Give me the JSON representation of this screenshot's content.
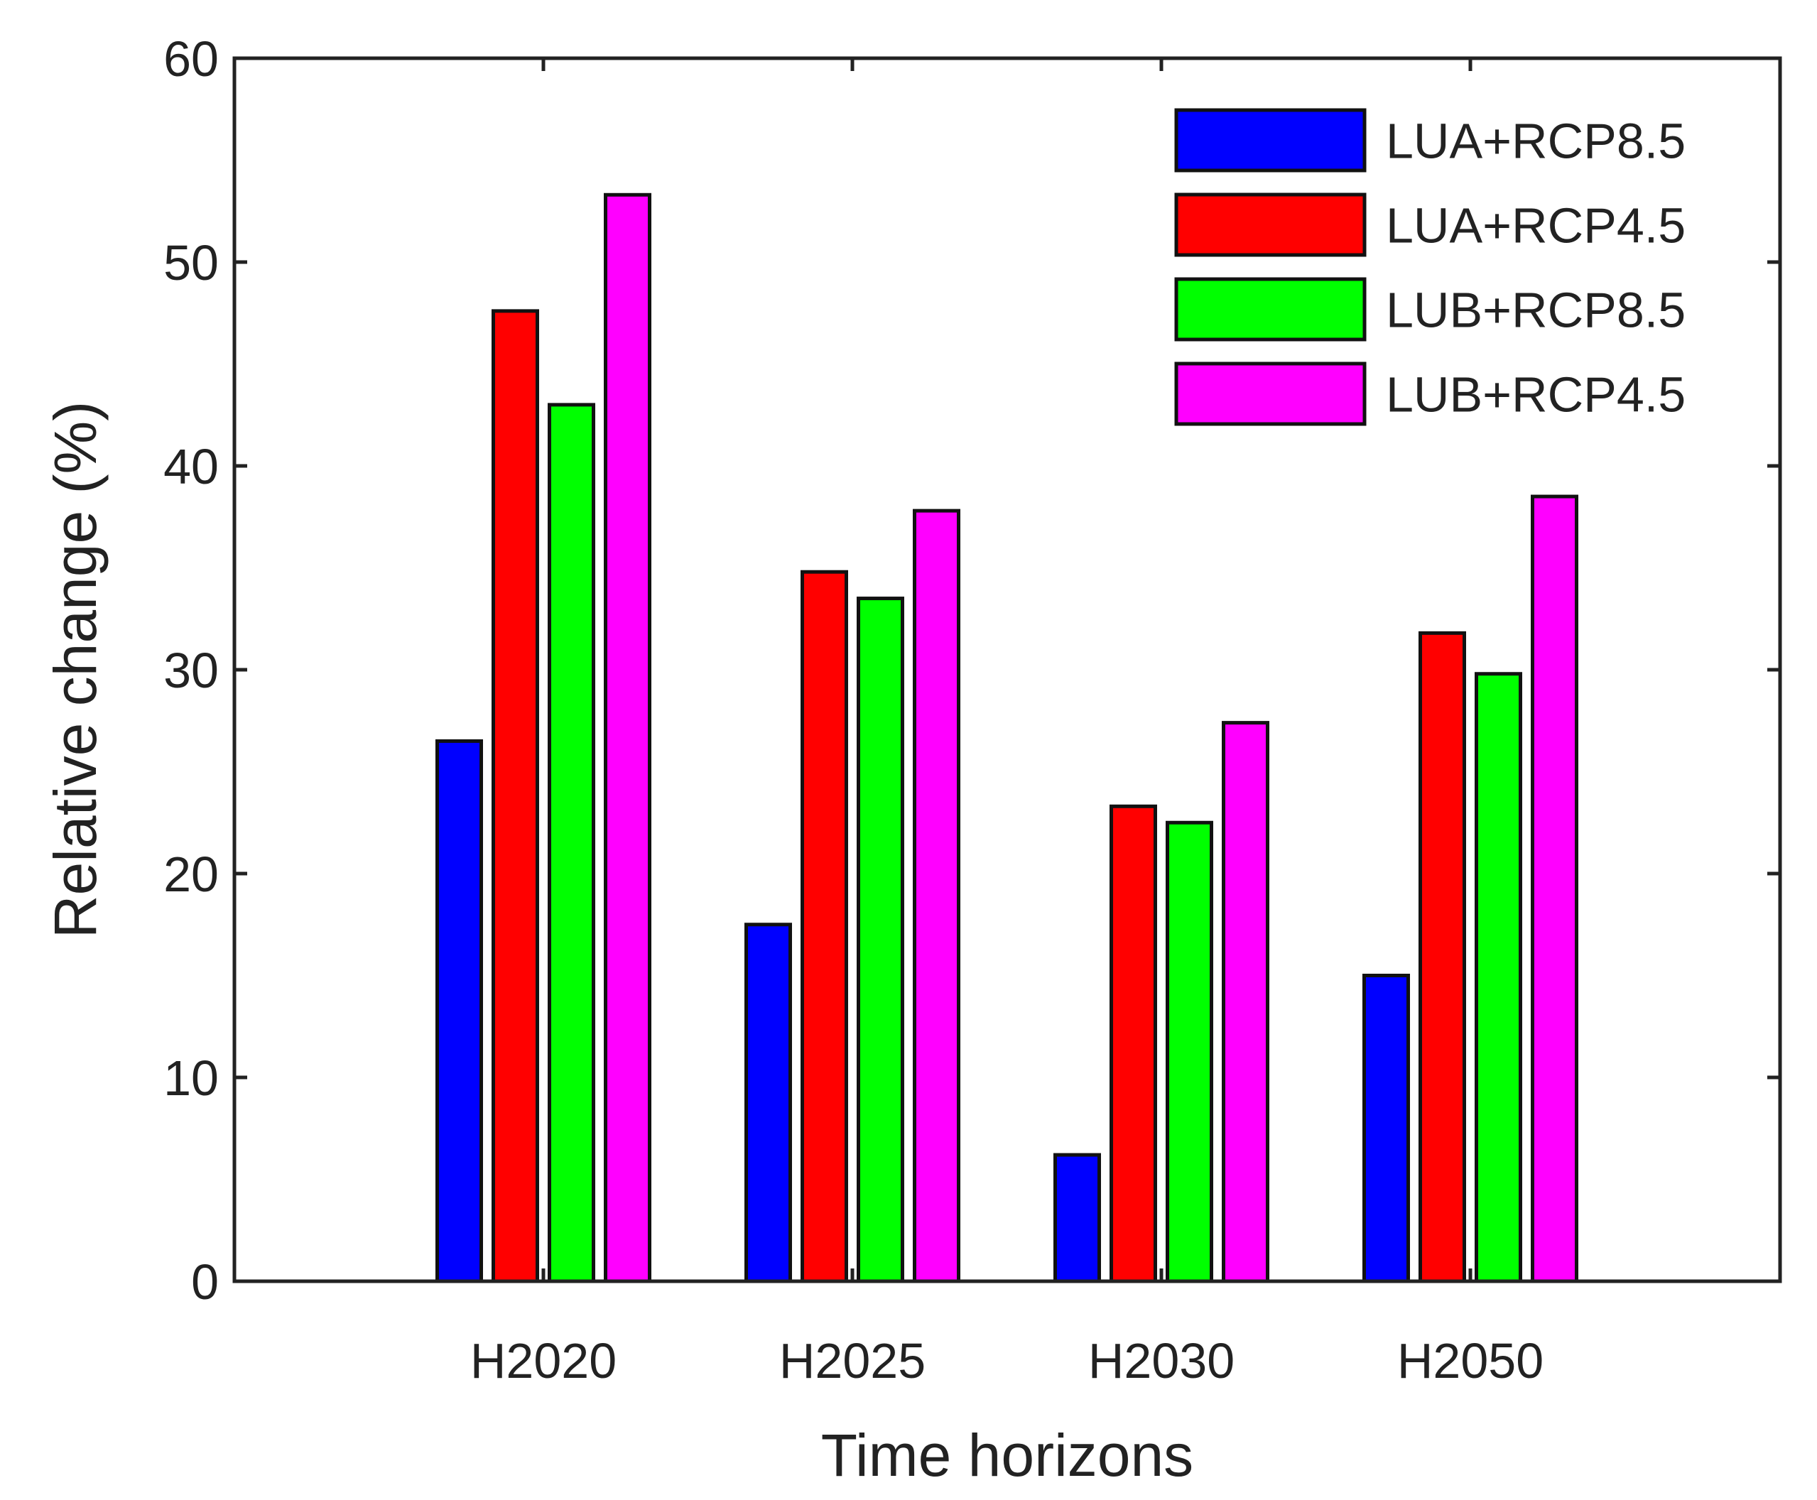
{
  "chart_data": {
    "type": "bar",
    "title": "",
    "xlabel": "Time horizons",
    "ylabel": "Relative change (%)",
    "categories": [
      "H2020",
      "H2025",
      "H2030",
      "H2050"
    ],
    "series": [
      {
        "name": "LUA+RCP8.5",
        "color": "#0000ff",
        "values": [
          26.5,
          17.5,
          6.2,
          15.0
        ]
      },
      {
        "name": "LUA+RCP4.5",
        "color": "#ff0000",
        "values": [
          47.6,
          34.8,
          23.3,
          31.8
        ]
      },
      {
        "name": "LUB+RCP8.5",
        "color": "#00ff00",
        "values": [
          43.0,
          33.5,
          22.5,
          29.8
        ]
      },
      {
        "name": "LUB+RCP4.5",
        "color": "#ff00ff",
        "values": [
          53.3,
          37.8,
          27.4,
          38.5
        ]
      }
    ],
    "ylim": [
      0,
      60
    ],
    "yticks": [
      0,
      10,
      20,
      30,
      40,
      50,
      60
    ],
    "grid": false,
    "legend_position": "top-right"
  }
}
